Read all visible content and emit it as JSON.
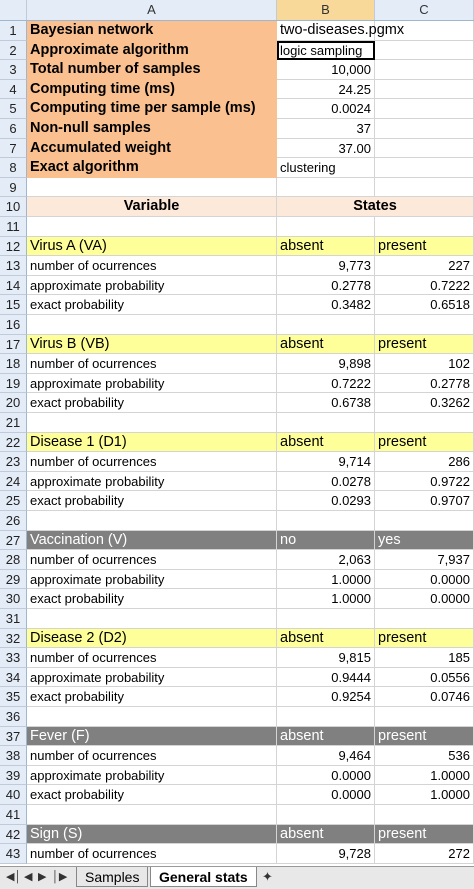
{
  "columns": [
    "A",
    "B",
    "C"
  ],
  "rows": [
    {
      "n": "1",
      "type": "info",
      "a": "Bayesian network",
      "b": "two-diseases.pgmx",
      "c": ""
    },
    {
      "n": "2",
      "type": "info",
      "a": "Approximate algorithm",
      "b": "logic sampling",
      "c": "",
      "sel": true
    },
    {
      "n": "3",
      "type": "info",
      "a": "Total number of samples",
      "b": "10,000",
      "c": "",
      "bnum": true
    },
    {
      "n": "4",
      "type": "info",
      "a": "Computing time (ms)",
      "b": "24.25",
      "c": "",
      "bnum": true
    },
    {
      "n": "5",
      "type": "info",
      "a": "Computing time per sample (ms)",
      "b": "0.0024",
      "c": "",
      "bnum": true
    },
    {
      "n": "6",
      "type": "info",
      "a": "Non-null samples",
      "b": "37",
      "c": "",
      "bnum": true
    },
    {
      "n": "7",
      "type": "info",
      "a": "Accumulated weight",
      "b": "37.00",
      "c": "",
      "bnum": true
    },
    {
      "n": "8",
      "type": "info",
      "a": "Exact algorithm",
      "b": "clustering",
      "c": ""
    },
    {
      "n": "9",
      "type": "blank",
      "a": "",
      "b": "",
      "c": ""
    },
    {
      "n": "10",
      "type": "hdr",
      "a": "Variable",
      "b": "States",
      "c": ""
    },
    {
      "n": "11",
      "type": "blank",
      "a": "",
      "b": "",
      "c": ""
    },
    {
      "n": "12",
      "type": "yel",
      "a": "Virus A (VA)",
      "b": "absent",
      "c": "present"
    },
    {
      "n": "13",
      "type": "data",
      "a": "number of ocurrences",
      "b": "9,773",
      "c": "227"
    },
    {
      "n": "14",
      "type": "data",
      "a": "approximate probability",
      "b": "0.2778",
      "c": "0.7222"
    },
    {
      "n": "15",
      "type": "data",
      "a": "exact probability",
      "b": "0.3482",
      "c": "0.6518"
    },
    {
      "n": "16",
      "type": "blank",
      "a": "",
      "b": "",
      "c": ""
    },
    {
      "n": "17",
      "type": "yel",
      "a": "Virus B (VB)",
      "b": "absent",
      "c": "present"
    },
    {
      "n": "18",
      "type": "data",
      "a": "number of ocurrences",
      "b": "9,898",
      "c": "102"
    },
    {
      "n": "19",
      "type": "data",
      "a": "approximate probability",
      "b": "0.7222",
      "c": "0.2778"
    },
    {
      "n": "20",
      "type": "data",
      "a": "exact probability",
      "b": "0.6738",
      "c": "0.3262"
    },
    {
      "n": "21",
      "type": "blank",
      "a": "",
      "b": "",
      "c": ""
    },
    {
      "n": "22",
      "type": "yel",
      "a": "Disease 1 (D1)",
      "b": "absent",
      "c": "present"
    },
    {
      "n": "23",
      "type": "data",
      "a": "number of ocurrences",
      "b": "9,714",
      "c": "286"
    },
    {
      "n": "24",
      "type": "data",
      "a": "approximate probability",
      "b": "0.0278",
      "c": "0.9722"
    },
    {
      "n": "25",
      "type": "data",
      "a": "exact probability",
      "b": "0.0293",
      "c": "0.9707"
    },
    {
      "n": "26",
      "type": "blank",
      "a": "",
      "b": "",
      "c": ""
    },
    {
      "n": "27",
      "type": "gray",
      "a": "Vaccination (V)",
      "b": "no",
      "c": "yes"
    },
    {
      "n": "28",
      "type": "data",
      "a": "number of ocurrences",
      "b": "2,063",
      "c": "7,937"
    },
    {
      "n": "29",
      "type": "data",
      "a": "approximate probability",
      "b": "1.0000",
      "c": "0.0000"
    },
    {
      "n": "30",
      "type": "data",
      "a": "exact probability",
      "b": "1.0000",
      "c": "0.0000"
    },
    {
      "n": "31",
      "type": "blank",
      "a": "",
      "b": "",
      "c": ""
    },
    {
      "n": "32",
      "type": "yel",
      "a": "Disease 2 (D2)",
      "b": "absent",
      "c": "present"
    },
    {
      "n": "33",
      "type": "data",
      "a": "number of ocurrences",
      "b": "9,815",
      "c": "185"
    },
    {
      "n": "34",
      "type": "data",
      "a": "approximate probability",
      "b": "0.9444",
      "c": "0.0556"
    },
    {
      "n": "35",
      "type": "data",
      "a": "exact probability",
      "b": "0.9254",
      "c": "0.0746"
    },
    {
      "n": "36",
      "type": "blank",
      "a": "",
      "b": "",
      "c": ""
    },
    {
      "n": "37",
      "type": "gray",
      "a": "Fever (F)",
      "b": "absent",
      "c": "present"
    },
    {
      "n": "38",
      "type": "data",
      "a": "number of ocurrences",
      "b": "9,464",
      "c": "536"
    },
    {
      "n": "39",
      "type": "data",
      "a": "approximate probability",
      "b": "0.0000",
      "c": "1.0000"
    },
    {
      "n": "40",
      "type": "data",
      "a": "exact probability",
      "b": "0.0000",
      "c": "1.0000"
    },
    {
      "n": "41",
      "type": "blank",
      "a": "",
      "b": "",
      "c": ""
    },
    {
      "n": "42",
      "type": "gray",
      "a": "Sign (S)",
      "b": "absent",
      "c": "present"
    },
    {
      "n": "43",
      "type": "data",
      "a": "number of ocurrences",
      "b": "9,728",
      "c": "272"
    }
  ],
  "sheet_tabs": [
    "Samples",
    "General stats"
  ],
  "active_tab": "General stats",
  "colors": {
    "info": "#fac090",
    "header": "#fde9d9",
    "yellow": "#ffff99",
    "gray": "#808080"
  }
}
